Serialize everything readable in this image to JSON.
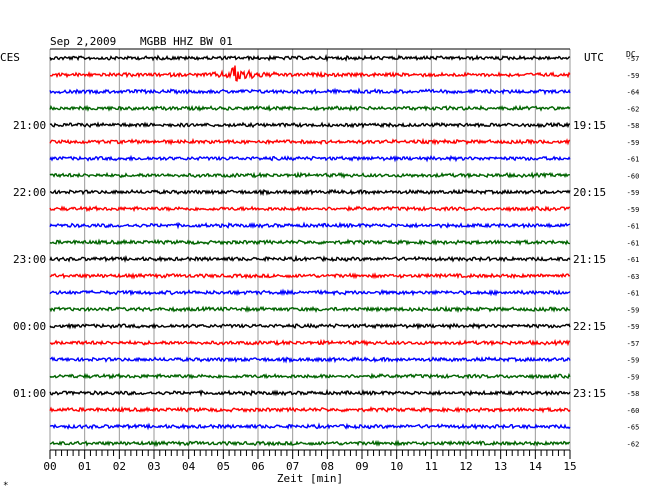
{
  "header": {
    "date": "Sep 2,2009",
    "station": "MGBB HHZ BW 01"
  },
  "left_tz": "CES",
  "right_tz": "UTC",
  "dc_label": "DC",
  "footer_mark": "*",
  "chart_data": {
    "type": "line",
    "xlabel": "Zeit [min]",
    "xlim": [
      0,
      15
    ],
    "x_ticks": [
      "00",
      "01",
      "02",
      "03",
      "04",
      "05",
      "06",
      "07",
      "08",
      "09",
      "10",
      "11",
      "12",
      "13",
      "14",
      "15"
    ],
    "trace_colors": [
      "#000000",
      "#ff0000",
      "#0000ff",
      "#006400"
    ],
    "left_time_labels": [
      {
        "trace": 4,
        "label": "21:00"
      },
      {
        "trace": 8,
        "label": "22:00"
      },
      {
        "trace": 12,
        "label": "23:00"
      },
      {
        "trace": 16,
        "label": "00:00"
      },
      {
        "trace": 20,
        "label": "01:00"
      }
    ],
    "right_time_labels": [
      {
        "trace": 4,
        "label": "19:15"
      },
      {
        "trace": 8,
        "label": "20:15"
      },
      {
        "trace": 12,
        "label": "21:15"
      },
      {
        "trace": 16,
        "label": "22:15"
      },
      {
        "trace": 20,
        "label": "23:15"
      }
    ],
    "dc_values": [
      "-57",
      "-59",
      "-64",
      "-62",
      "-58",
      "-59",
      "-61",
      "-60",
      "-59",
      "-59",
      "-61",
      "-61",
      "-61",
      "-63",
      "-61",
      "-59",
      "-59",
      "-57",
      "-59",
      "-59",
      "-58",
      "-60",
      "-65",
      "-62"
    ],
    "events": [
      {
        "trace": 1,
        "time_min": 5.2,
        "label": ""
      }
    ]
  }
}
